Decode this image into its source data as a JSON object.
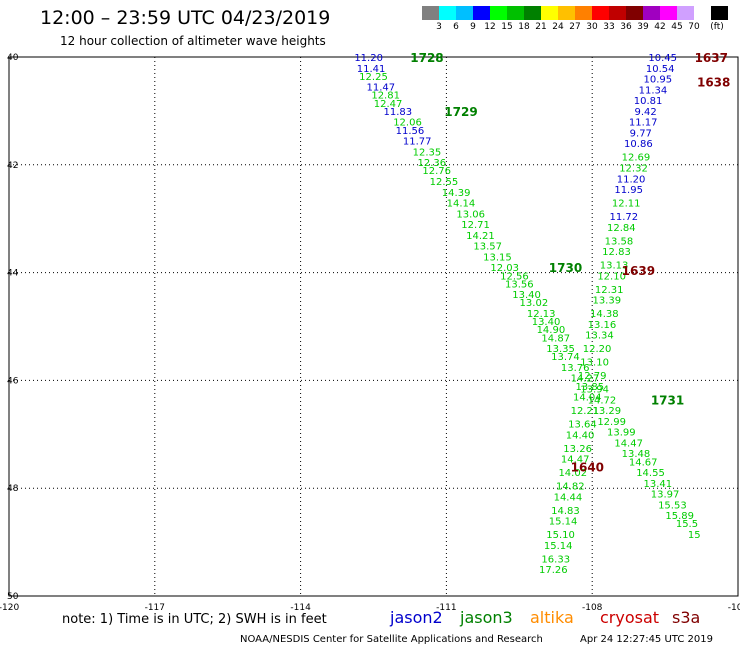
{
  "header": {
    "title": "12:00 – 23:59 UTC 04/23/2019",
    "subtitle": "12 hour collection of altimeter wave heights"
  },
  "colorbar": {
    "unit_label": "(ft)",
    "colors": [
      "#808080",
      "#00ffff",
      "#00bfff",
      "#0000ff",
      "#00ff00",
      "#00c000",
      "#008000",
      "#ffff00",
      "#ffc000",
      "#ff8000",
      "#ff0000",
      "#c00000",
      "#800000",
      "#a000c0",
      "#ff00ff",
      "#d0a0ff",
      "#ffffff",
      "#000000"
    ],
    "labels": [
      "3",
      "6",
      "9",
      "12",
      "15",
      "18",
      "21",
      "24",
      "27",
      "30",
      "33",
      "36",
      "39",
      "42",
      "45",
      "70"
    ]
  },
  "footer": {
    "note": "note: 1) Time is in UTC; 2) SWH is in feet",
    "satellites": [
      {
        "name": "jason2",
        "color": "#0000cc"
      },
      {
        "name": "jason3",
        "color": "#008000"
      },
      {
        "name": "altika",
        "color": "#ff8c00"
      },
      {
        "name": "cryosat",
        "color": "#cc0000"
      },
      {
        "name": "s3a",
        "color": "#800000"
      }
    ],
    "credit": "NOAA/NESDIS Center for Satellite Applications and Research",
    "timestamp": "Apr 24 12:27:45 UTC 2019"
  },
  "chart_data": {
    "type": "scatter",
    "title": "12:00 – 23:59 UTC 04/23/2019",
    "xlim": [
      -120,
      -105
    ],
    "ylim": [
      50,
      40
    ],
    "xticks": [
      "-120",
      "-117",
      "-114",
      "-111",
      "-108",
      "-105"
    ],
    "yticks": [
      "40",
      "42",
      "44",
      "46",
      "48",
      "50"
    ],
    "grid": true,
    "series": [
      {
        "name": "jason3 pass 1728–1730",
        "values": [
          {
            "lon": -112.6,
            "lat": 40.0,
            "v": "11.20",
            "c": "#0000cc"
          },
          {
            "lon": -112.55,
            "lat": 40.2,
            "v": "11.41",
            "c": "#0000cc"
          },
          {
            "lon": -112.5,
            "lat": 40.35,
            "v": "12.25",
            "c": "#00cc00"
          },
          {
            "lon": -112.35,
            "lat": 40.55,
            "v": "11.47",
            "c": "#0000cc"
          },
          {
            "lon": -112.25,
            "lat": 40.7,
            "v": "12.81",
            "c": "#00cc00"
          },
          {
            "lon": -112.2,
            "lat": 40.85,
            "v": "12.47",
            "c": "#00cc00"
          },
          {
            "lon": -112.0,
            "lat": 41.0,
            "v": "11.83",
            "c": "#0000cc"
          },
          {
            "lon": -111.8,
            "lat": 41.2,
            "v": "12.06",
            "c": "#00cc00"
          },
          {
            "lon": -111.75,
            "lat": 41.35,
            "v": "11.56",
            "c": "#0000cc"
          },
          {
            "lon": -111.6,
            "lat": 41.55,
            "v": "11.77",
            "c": "#0000cc"
          },
          {
            "lon": -111.4,
            "lat": 41.75,
            "v": "12.35",
            "c": "#00cc00"
          },
          {
            "lon": -111.3,
            "lat": 41.95,
            "v": "12.36",
            "c": "#00cc00"
          },
          {
            "lon": -111.2,
            "lat": 42.1,
            "v": "12.76",
            "c": "#00cc00"
          },
          {
            "lon": -111.05,
            "lat": 42.3,
            "v": "12.55",
            "c": "#00cc00"
          },
          {
            "lon": -110.8,
            "lat": 42.5,
            "v": "14.39",
            "c": "#00cc00"
          },
          {
            "lon": -110.7,
            "lat": 42.7,
            "v": "14.14",
            "c": "#00cc00"
          },
          {
            "lon": -110.5,
            "lat": 42.9,
            "v": "13.06",
            "c": "#00cc00"
          },
          {
            "lon": -110.4,
            "lat": 43.1,
            "v": "12.71",
            "c": "#00cc00"
          },
          {
            "lon": -110.3,
            "lat": 43.3,
            "v": "14.21",
            "c": "#00cc00"
          },
          {
            "lon": -110.15,
            "lat": 43.5,
            "v": "13.57",
            "c": "#00cc00"
          },
          {
            "lon": -109.95,
            "lat": 43.7,
            "v": "13.15",
            "c": "#00cc00"
          },
          {
            "lon": -109.8,
            "lat": 43.9,
            "v": "12.03",
            "c": "#00cc00"
          },
          {
            "lon": -109.6,
            "lat": 44.05,
            "v": "12.56",
            "c": "#00cc00"
          },
          {
            "lon": -109.5,
            "lat": 44.2,
            "v": "13.56",
            "c": "#00cc00"
          },
          {
            "lon": -109.35,
            "lat": 44.4,
            "v": "13.40",
            "c": "#00cc00"
          },
          {
            "lon": -109.2,
            "lat": 44.55,
            "v": "13.02",
            "c": "#00cc00"
          },
          {
            "lon": -109.05,
            "lat": 44.75,
            "v": "12.13",
            "c": "#00cc00"
          },
          {
            "lon": -108.95,
            "lat": 44.9,
            "v": "13.40",
            "c": "#00cc00"
          },
          {
            "lon": -108.85,
            "lat": 45.05,
            "v": "14.90",
            "c": "#00cc00"
          },
          {
            "lon": -108.75,
            "lat": 45.2,
            "v": "14.87",
            "c": "#00cc00"
          },
          {
            "lon": -108.65,
            "lat": 45.4,
            "v": "13.35",
            "c": "#00cc00"
          },
          {
            "lon": -108.55,
            "lat": 45.55,
            "v": "13.74",
            "c": "#00cc00"
          },
          {
            "lon": -108.35,
            "lat": 45.75,
            "v": "13.76",
            "c": "#00cc00"
          },
          {
            "lon": -108.15,
            "lat": 45.95,
            "v": "14.27",
            "c": "#00cc00"
          },
          {
            "lon": -107.95,
            "lat": 46.15,
            "v": "13.94",
            "c": "#00cc00"
          },
          {
            "lon": -107.8,
            "lat": 46.35,
            "v": "14.72",
            "c": "#00cc00"
          },
          {
            "lon": -107.7,
            "lat": 46.55,
            "v": "13.29",
            "c": "#00cc00"
          },
          {
            "lon": -107.6,
            "lat": 46.75,
            "v": "12.99",
            "c": "#00cc00"
          },
          {
            "lon": -107.4,
            "lat": 46.95,
            "v": "13.99",
            "c": "#00cc00"
          },
          {
            "lon": -107.25,
            "lat": 47.15,
            "v": "14.47",
            "c": "#00cc00"
          },
          {
            "lon": -107.1,
            "lat": 47.35,
            "v": "13.48",
            "c": "#00cc00"
          },
          {
            "lon": -106.95,
            "lat": 47.5,
            "v": "14.67",
            "c": "#00cc00"
          },
          {
            "lon": -106.8,
            "lat": 47.7,
            "v": "14.55",
            "c": "#00cc00"
          },
          {
            "lon": -106.65,
            "lat": 47.9,
            "v": "13.41",
            "c": "#00cc00"
          },
          {
            "lon": -106.5,
            "lat": 48.1,
            "v": "13.97",
            "c": "#00cc00"
          },
          {
            "lon": -106.35,
            "lat": 48.3,
            "v": "15.53",
            "c": "#00cc00"
          },
          {
            "lon": -106.2,
            "lat": 48.5,
            "v": "15.89",
            "c": "#00cc00"
          },
          {
            "lon": -106.05,
            "lat": 48.65,
            "v": "15.5",
            "c": "#00cc00"
          },
          {
            "lon": -105.9,
            "lat": 48.85,
            "v": "15",
            "c": "#00cc00"
          }
        ]
      },
      {
        "name": "s3a pass 1637–1640",
        "values": [
          {
            "lon": -106.55,
            "lat": 40.0,
            "v": "10.45",
            "c": "#0000cc"
          },
          {
            "lon": -106.6,
            "lat": 40.2,
            "v": "10.54",
            "c": "#0000cc"
          },
          {
            "lon": -106.65,
            "lat": 40.4,
            "v": "10.95",
            "c": "#0000cc"
          },
          {
            "lon": -106.75,
            "lat": 40.6,
            "v": "11.34",
            "c": "#0000cc"
          },
          {
            "lon": -106.85,
            "lat": 40.8,
            "v": "10.81",
            "c": "#0000cc"
          },
          {
            "lon": -106.9,
            "lat": 41.0,
            "v": "9.42",
            "c": "#0000cc"
          },
          {
            "lon": -106.95,
            "lat": 41.2,
            "v": "11.17",
            "c": "#0000cc"
          },
          {
            "lon": -107.0,
            "lat": 41.4,
            "v": "9.77",
            "c": "#0000cc"
          },
          {
            "lon": -107.05,
            "lat": 41.6,
            "v": "10.86",
            "c": "#0000cc"
          },
          {
            "lon": -107.1,
            "lat": 41.85,
            "v": "12.69",
            "c": "#00cc00"
          },
          {
            "lon": -107.15,
            "lat": 42.05,
            "v": "12.32",
            "c": "#00cc00"
          },
          {
            "lon": -107.2,
            "lat": 42.25,
            "v": "11.20",
            "c": "#0000cc"
          },
          {
            "lon": -107.25,
            "lat": 42.45,
            "v": "11.95",
            "c": "#0000cc"
          },
          {
            "lon": -107.3,
            "lat": 42.7,
            "v": "12.11",
            "c": "#00cc00"
          },
          {
            "lon": -107.35,
            "lat": 42.95,
            "v": "11.72",
            "c": "#0000cc"
          },
          {
            "lon": -107.4,
            "lat": 43.15,
            "v": "12.84",
            "c": "#00cc00"
          },
          {
            "lon": -107.45,
            "lat": 43.4,
            "v": "13.58",
            "c": "#00cc00"
          },
          {
            "lon": -107.5,
            "lat": 43.6,
            "v": "12.83",
            "c": "#00cc00"
          },
          {
            "lon": -107.55,
            "lat": 43.85,
            "v": "13.13",
            "c": "#00cc00"
          },
          {
            "lon": -107.6,
            "lat": 44.05,
            "v": "12.10",
            "c": "#00cc00"
          },
          {
            "lon": -107.65,
            "lat": 44.3,
            "v": "12.31",
            "c": "#00cc00"
          },
          {
            "lon": -107.7,
            "lat": 44.5,
            "v": "13.39",
            "c": "#00cc00"
          },
          {
            "lon": -107.75,
            "lat": 44.75,
            "v": "14.38",
            "c": "#00cc00"
          },
          {
            "lon": -107.8,
            "lat": 44.95,
            "v": "13.16",
            "c": "#00cc00"
          },
          {
            "lon": -107.85,
            "lat": 45.15,
            "v": "13.34",
            "c": "#00cc00"
          },
          {
            "lon": -107.9,
            "lat": 45.4,
            "v": "12.20",
            "c": "#00cc00"
          },
          {
            "lon": -107.95,
            "lat": 45.65,
            "v": "13.10",
            "c": "#00cc00"
          },
          {
            "lon": -108.0,
            "lat": 45.9,
            "v": "12.79",
            "c": "#00cc00"
          },
          {
            "lon": -108.05,
            "lat": 46.1,
            "v": "13.85",
            "c": "#00cc00"
          },
          {
            "lon": -108.1,
            "lat": 46.3,
            "v": "14.04",
            "c": "#00cc00"
          },
          {
            "lon": -108.15,
            "lat": 46.55,
            "v": "12.21",
            "c": "#00cc00"
          },
          {
            "lon": -108.2,
            "lat": 46.8,
            "v": "13.64",
            "c": "#00cc00"
          },
          {
            "lon": -108.25,
            "lat": 47.0,
            "v": "14.40",
            "c": "#00cc00"
          },
          {
            "lon": -108.3,
            "lat": 47.25,
            "v": "13.26",
            "c": "#00cc00"
          },
          {
            "lon": -108.35,
            "lat": 47.45,
            "v": "14.47",
            "c": "#00cc00"
          },
          {
            "lon": -108.4,
            "lat": 47.7,
            "v": "14.02",
            "c": "#00cc00"
          },
          {
            "lon": -108.45,
            "lat": 47.95,
            "v": "14.82",
            "c": "#00cc00"
          },
          {
            "lon": -108.5,
            "lat": 48.15,
            "v": "14.44",
            "c": "#00cc00"
          },
          {
            "lon": -108.55,
            "lat": 48.4,
            "v": "14.83",
            "c": "#00cc00"
          },
          {
            "lon": -108.6,
            "lat": 48.6,
            "v": "15.14",
            "c": "#00cc00"
          },
          {
            "lon": -108.65,
            "lat": 48.85,
            "v": "15.10",
            "c": "#00cc00"
          },
          {
            "lon": -108.7,
            "lat": 49.05,
            "v": "15.14",
            "c": "#00cc00"
          },
          {
            "lon": -108.75,
            "lat": 49.3,
            "v": "16.33",
            "c": "#00cc00"
          },
          {
            "lon": -108.8,
            "lat": 49.5,
            "v": "17.26",
            "c": "#00cc00"
          }
        ]
      }
    ],
    "annotations": [
      {
        "text": "1728",
        "lon": -111.4,
        "lat": 40.0,
        "color": "#008000"
      },
      {
        "text": "1729",
        "lon": -110.7,
        "lat": 41.0,
        "color": "#008000"
      },
      {
        "text": "1730",
        "lon": -108.55,
        "lat": 43.9,
        "color": "#008000"
      },
      {
        "text": "1731",
        "lon": -106.45,
        "lat": 46.35,
        "color": "#008000"
      },
      {
        "text": "1637",
        "lon": -105.55,
        "lat": 40.0,
        "color": "#800000"
      },
      {
        "text": "1638",
        "lon": -105.5,
        "lat": 40.45,
        "color": "#800000"
      },
      {
        "text": "1639",
        "lon": -107.05,
        "lat": 43.95,
        "color": "#800000"
      },
      {
        "text": "1640",
        "lon": -108.1,
        "lat": 47.6,
        "color": "#800000"
      }
    ]
  }
}
